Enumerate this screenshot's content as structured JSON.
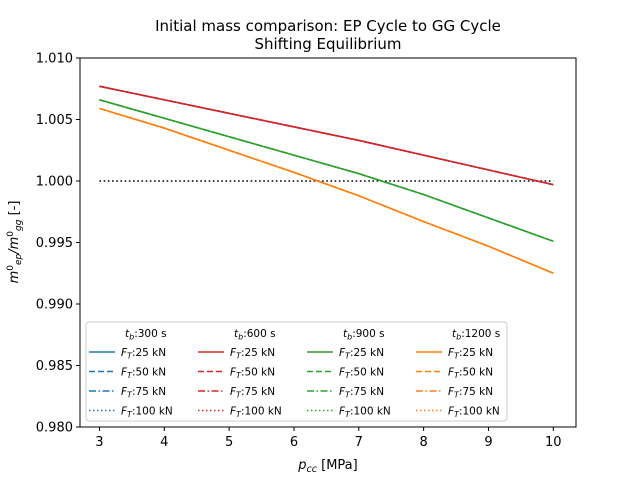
{
  "chart_data": {
    "type": "line",
    "title": "Initial mass comparison: EP Cycle to GG Cycle",
    "subtitle": "Shifting Equilibrium",
    "xlabel_base": "p",
    "xlabel_sub": "cc",
    "xlabel_unit": " [MPa]",
    "ylabel": {
      "m1": "m",
      "sup1": "0",
      "sub1": "ep",
      "slash": "/m",
      "sup2": "0",
      "sub2": "gg",
      "unit": " [-]"
    },
    "xlim": [
      2.7,
      10.35
    ],
    "ylim": [
      0.98,
      1.01
    ],
    "x_ticks": [
      3,
      4,
      5,
      6,
      7,
      8,
      9,
      10
    ],
    "y_ticks": [
      0.98,
      0.985,
      0.99,
      0.995,
      1.0,
      1.005,
      1.01
    ],
    "x_tick_labels": [
      "3",
      "4",
      "5",
      "6",
      "7",
      "8",
      "9",
      "10"
    ],
    "y_tick_labels": [
      "0.980",
      "0.985",
      "0.990",
      "0.995",
      "1.000",
      "1.005",
      "1.010"
    ],
    "grid": false,
    "legend_position": "lower-left",
    "x": [
      3,
      4,
      5,
      6,
      7,
      8,
      9,
      10
    ],
    "reference_line": {
      "x": [
        3,
        10
      ],
      "y": [
        1.0,
        1.0
      ],
      "color": "#000000",
      "style": "dotted"
    },
    "groups": [
      {
        "header_base": "t",
        "header_sub": "b",
        "header_value": ":300 s",
        "color": "#1f77b4",
        "values": [
          1.0077,
          1.0066,
          1.0055,
          1.0044,
          1.0033,
          1.0021,
          1.0009,
          0.9997
        ],
        "series": [
          {
            "label_base": "F",
            "label_sub": "T",
            "label_value": ":25 kN",
            "style": "solid"
          },
          {
            "label_base": "F",
            "label_sub": "T",
            "label_value": ":50 kN",
            "style": "dashed"
          },
          {
            "label_base": "F",
            "label_sub": "T",
            "label_value": ":75 kN",
            "style": "dashdot"
          },
          {
            "label_base": "F",
            "label_sub": "T",
            "label_value": ":100 kN",
            "style": "dotted"
          }
        ]
      },
      {
        "header_base": "t",
        "header_sub": "b",
        "header_value": ":600 s",
        "color": "#d62728",
        "values": [
          1.0077,
          1.0066,
          1.0055,
          1.0044,
          1.0033,
          1.0021,
          1.0009,
          0.9997
        ],
        "series": [
          {
            "label_base": "F",
            "label_sub": "T",
            "label_value": ":25 kN",
            "style": "solid"
          },
          {
            "label_base": "F",
            "label_sub": "T",
            "label_value": ":50 kN",
            "style": "dashed"
          },
          {
            "label_base": "F",
            "label_sub": "T",
            "label_value": ":75 kN",
            "style": "dashdot"
          },
          {
            "label_base": "F",
            "label_sub": "T",
            "label_value": ":100 kN",
            "style": "dotted"
          }
        ]
      },
      {
        "header_base": "t",
        "header_sub": "b",
        "header_value": ":900 s",
        "color": "#2ca02c",
        "values": [
          1.0066,
          1.0051,
          1.0036,
          1.0021,
          1.0006,
          0.9989,
          0.997,
          0.9951
        ],
        "series": [
          {
            "label_base": "F",
            "label_sub": "T",
            "label_value": ":25 kN",
            "style": "solid"
          },
          {
            "label_base": "F",
            "label_sub": "T",
            "label_value": ":50 kN",
            "style": "dashed"
          },
          {
            "label_base": "F",
            "label_sub": "T",
            "label_value": ":75 kN",
            "style": "dashdot"
          },
          {
            "label_base": "F",
            "label_sub": "T",
            "label_value": ":100 kN",
            "style": "dotted"
          }
        ]
      },
      {
        "header_base": "t",
        "header_sub": "b",
        "header_value": ":1200 s",
        "color": "#ff7f0e",
        "values": [
          1.0059,
          1.0043,
          1.0025,
          1.0007,
          0.9988,
          0.9967,
          0.9947,
          0.9925
        ],
        "series": [
          {
            "label_base": "F",
            "label_sub": "T",
            "label_value": ":25 kN",
            "style": "solid"
          },
          {
            "label_base": "F",
            "label_sub": "T",
            "label_value": ":50 kN",
            "style": "dashed"
          },
          {
            "label_base": "F",
            "label_sub": "T",
            "label_value": ":75 kN",
            "style": "dashdot"
          },
          {
            "label_base": "F",
            "label_sub": "T",
            "label_value": ":100 kN",
            "style": "dotted"
          }
        ]
      }
    ]
  }
}
